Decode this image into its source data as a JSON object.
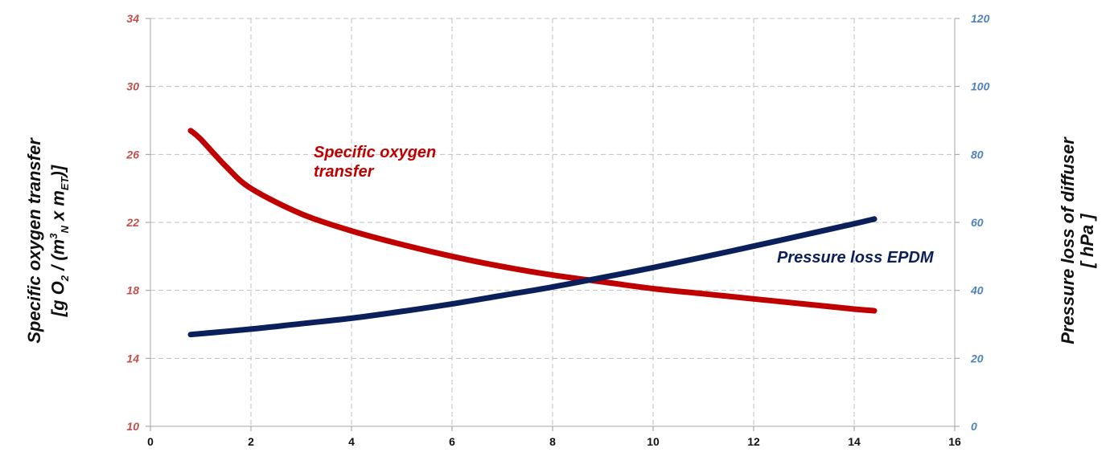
{
  "chart_data": {
    "type": "line",
    "x_axis": {
      "range": [
        0,
        16
      ],
      "ticks": [
        "0",
        "2",
        "4",
        "6",
        "8",
        "10",
        "12",
        "14",
        "16"
      ]
    },
    "y_left": {
      "range": [
        10,
        34
      ],
      "ticks": [
        "10",
        "14",
        "18",
        "22",
        "26",
        "30",
        "34"
      ],
      "label_line1": "Specific oxygen transfer",
      "label_line2_prefix": "[g O",
      "label_line2_sub1": "2",
      "label_line2_mid1": " / (m",
      "label_line2_sup": "3",
      "label_line2_sub2": "N",
      "label_line2_mid2": " x m",
      "label_line2_sub3": "ET",
      "label_line2_suffix": ")]",
      "color": "#c0504d"
    },
    "y_right": {
      "range": [
        0,
        120
      ],
      "ticks": [
        "0",
        "20",
        "40",
        "60",
        "80",
        "100",
        "120"
      ],
      "label_line1": "Pressure loss of diffuser",
      "label_line2": "[ hPa ]",
      "color": "#4f81bd"
    },
    "grid": true,
    "series": [
      {
        "name": "Specific oxygen transfer",
        "name_line1": "Specific oxygen",
        "name_line2": "transfer",
        "axis": "left",
        "color": "#c00000",
        "x": [
          0.8,
          1.0,
          1.5,
          2.0,
          3.0,
          4.0,
          5.0,
          6.0,
          7.0,
          8.0,
          9.0,
          10.0,
          11.0,
          12.0,
          13.0,
          14.0,
          14.4
        ],
        "y": [
          27.4,
          26.9,
          25.3,
          24.0,
          22.5,
          21.5,
          20.7,
          20.0,
          19.4,
          18.9,
          18.5,
          18.1,
          17.8,
          17.5,
          17.2,
          16.9,
          16.8
        ]
      },
      {
        "name": "Pressure loss EPDM",
        "axis": "right",
        "color": "#0b1f5b",
        "x": [
          0.8,
          2.0,
          3.0,
          4.0,
          5.0,
          6.0,
          7.0,
          8.0,
          9.0,
          10.0,
          11.0,
          12.0,
          13.0,
          14.0,
          14.4
        ],
        "y": [
          27.0,
          28.6,
          30.2,
          31.8,
          33.8,
          36.0,
          38.5,
          41.0,
          43.8,
          46.7,
          49.8,
          53.0,
          56.3,
          59.6,
          61.0
        ]
      }
    ]
  }
}
